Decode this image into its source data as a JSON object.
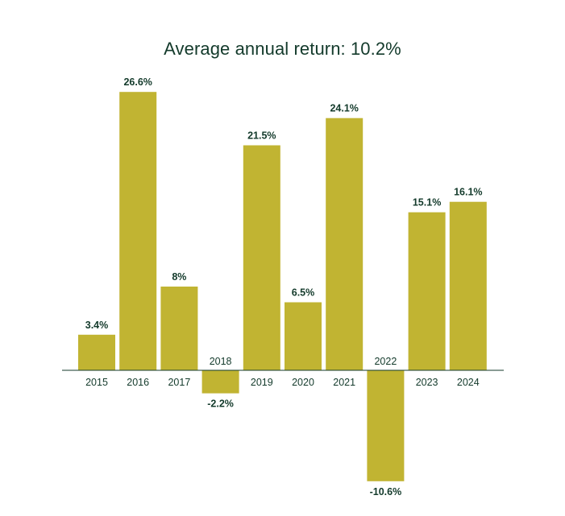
{
  "chart_data": {
    "type": "bar",
    "title": "Average annual return: 10.2%",
    "xlabel": "",
    "ylabel": "",
    "categories": [
      "2015",
      "2016",
      "2017",
      "2018",
      "2019",
      "2020",
      "2021",
      "2022",
      "2023",
      "2024"
    ],
    "values": [
      3.4,
      26.6,
      8,
      -2.2,
      21.5,
      6.5,
      24.1,
      -10.6,
      15.1,
      16.1
    ],
    "value_labels": [
      "3.4%",
      "26.6%",
      "8%",
      "-2.2%",
      "21.5%",
      "6.5%",
      "24.1%",
      "-10.6%",
      "15.1%",
      "16.1%"
    ],
    "ylim": [
      -11,
      27
    ],
    "grid": false,
    "legend": "none",
    "colors": {
      "bar": "#c1b432",
      "text": "#133a2b",
      "axis": "#133a2b"
    }
  }
}
